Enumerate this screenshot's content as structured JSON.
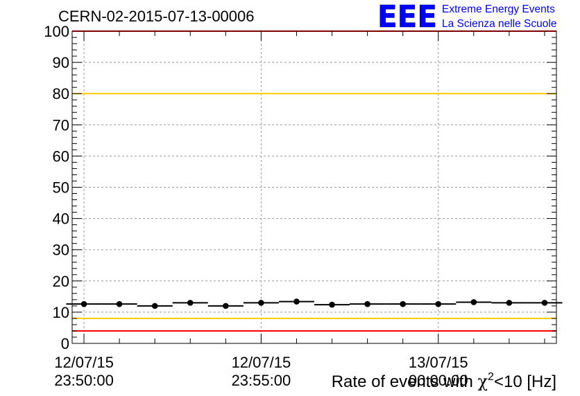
{
  "chart_data": {
    "type": "scatter",
    "title": "CERN-02-2015-07-13-00006",
    "xlabel": "",
    "ylabel": "",
    "ylim": [
      0,
      100
    ],
    "y_ticks": [
      "0",
      "10",
      "20",
      "30",
      "40",
      "50",
      "60",
      "70",
      "80",
      "90",
      "100"
    ],
    "x_tick_labels": [
      {
        "date": "12/07/15",
        "time": "23:50:00"
      },
      {
        "date": "12/07/15",
        "time": "23:55:00"
      },
      {
        "date": "13/07/15",
        "time": "00:00:00"
      }
    ],
    "x_range": [
      "2015-07-12 23:49:40",
      "2015-07-13 00:03:20"
    ],
    "x": [
      "23:50:00",
      "23:51:00",
      "23:52:00",
      "23:53:00",
      "23:54:00",
      "23:55:00",
      "23:56:00",
      "23:57:00",
      "23:58:00",
      "23:59:00",
      "00:00:00",
      "00:01:00",
      "00:02:00",
      "00:03:00"
    ],
    "values": [
      12.6,
      12.6,
      12.0,
      13.0,
      12.0,
      13.0,
      13.4,
      12.4,
      12.6,
      12.6,
      12.6,
      13.2,
      13.0,
      13.0
    ],
    "series_color": "#000000",
    "reference_lines": [
      {
        "y": 80,
        "color": "#ffcc00"
      },
      {
        "y": 8,
        "color": "#ffcc00"
      },
      {
        "y": 100,
        "color": "#ff0000"
      },
      {
        "y": 4,
        "color": "#ff0000"
      }
    ],
    "grid": true
  },
  "header": {
    "logo_text": "EEE",
    "logo_line1": "Extreme Energy Events",
    "logo_line2": "La Scienza nelle Scuole",
    "logo_color": "#0000ff"
  },
  "axis_caption": {
    "prefix": "Rate of events with ",
    "chi": "χ",
    "sup": "2",
    "suffix": "<10 [Hz]"
  }
}
